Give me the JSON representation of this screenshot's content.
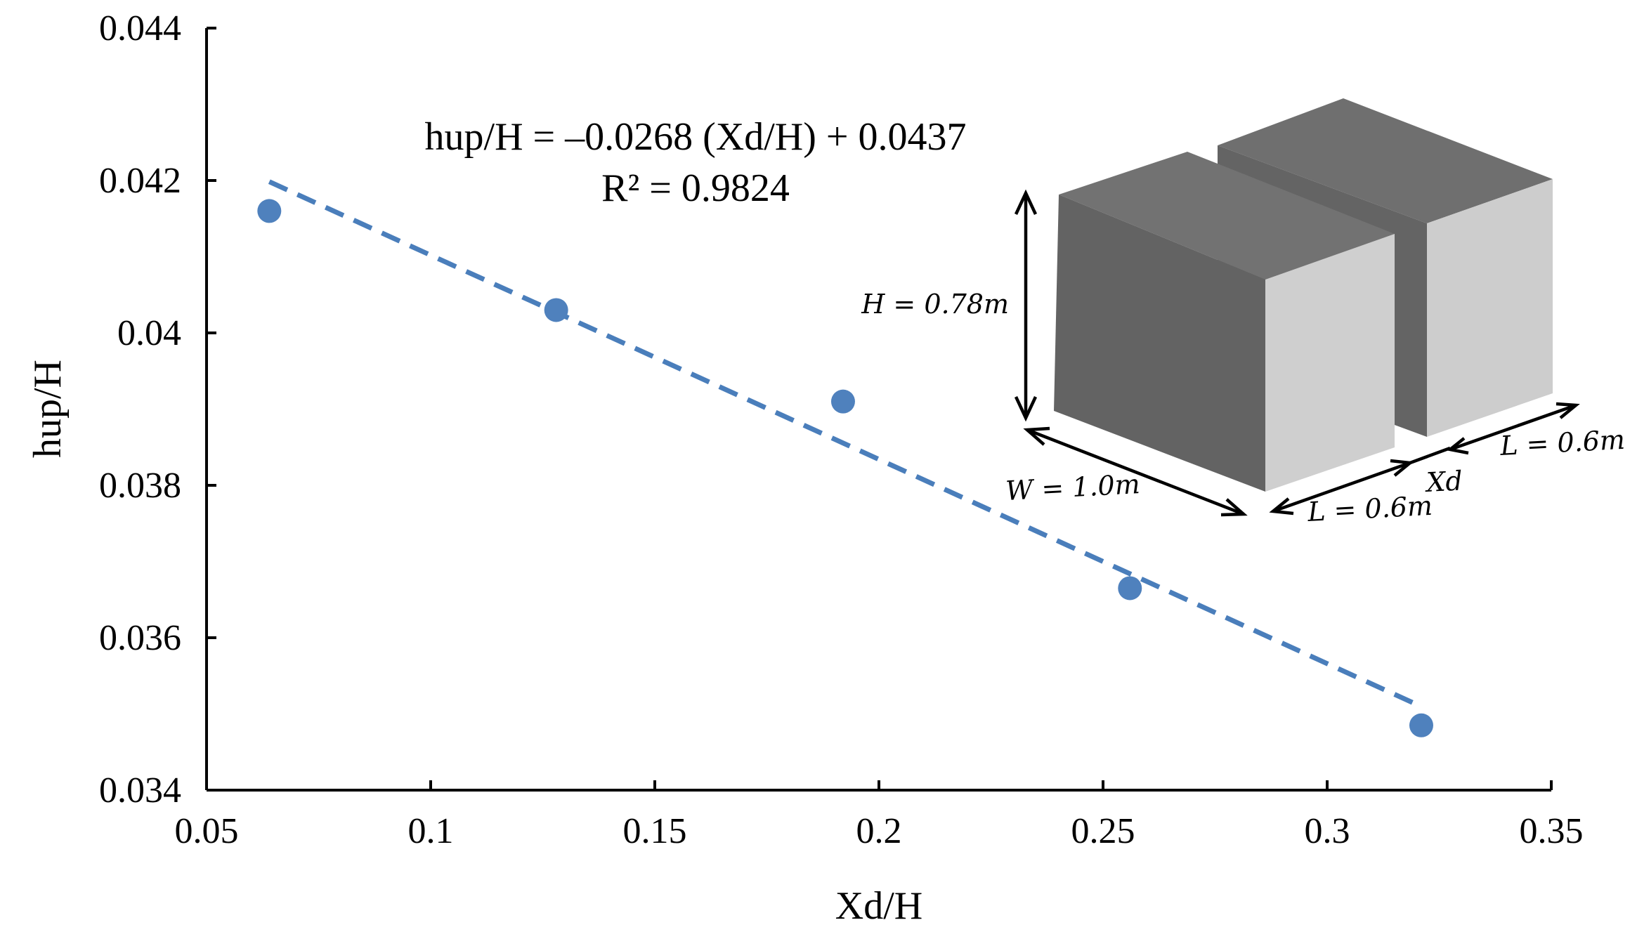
{
  "chart_data": {
    "type": "scatter",
    "xlabel": "Xd/H",
    "ylabel": "hup/H",
    "xlim": [
      0.05,
      0.35
    ],
    "ylim": [
      0.034,
      0.044
    ],
    "x_ticks": [
      "0.05",
      "0.1",
      "0.15",
      "0.2",
      "0.25",
      "0.3",
      "0.35"
    ],
    "y_ticks": [
      "0.034",
      "0.036",
      "0.038",
      "0.04",
      "0.042",
      "0.044"
    ],
    "series": [
      {
        "values": [
          {
            "x": 0.064,
            "y": 0.0416
          },
          {
            "x": 0.128,
            "y": 0.0403
          },
          {
            "x": 0.192,
            "y": 0.0391
          },
          {
            "x": 0.256,
            "y": 0.03665
          },
          {
            "x": 0.321,
            "y": 0.03485
          }
        ]
      }
    ],
    "trendline": {
      "style": "dashed",
      "slope": -0.0268,
      "intercept": 0.0437,
      "x_range": [
        0.064,
        0.321
      ]
    },
    "annotations": {
      "equation": "hup/H = –0.0268 (Xd/H) + 0.0437",
      "r_squared": "R² = 0.9824"
    },
    "grid": false,
    "legend": "none",
    "colors": {
      "points": "#4f81bd",
      "trendline": "#4a7ebb"
    }
  },
  "inset": {
    "height_label": "H = 0.78m",
    "width_label": "W = 1.0m",
    "length1_label": "L = 0.6m",
    "gap_label": "Xd",
    "length2_label": "L = 0.6m",
    "colors": {
      "top": "#6f6f6f",
      "front": "#646464",
      "side": "#cdcdcd"
    }
  }
}
